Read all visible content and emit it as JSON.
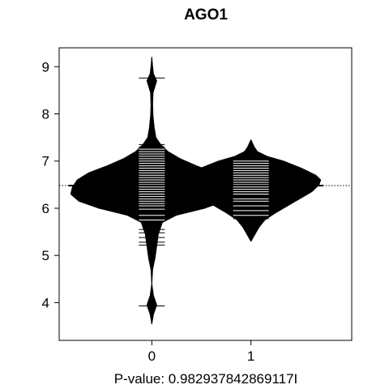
{
  "chart_data": {
    "type": "beanplot",
    "title": "AGO1",
    "xlabel": "P-value: 0.982937842869117I",
    "ylabel": "",
    "categories": [
      "0",
      "1"
    ],
    "y_ticks": [
      "4",
      "5",
      "6",
      "7",
      "8",
      "9"
    ],
    "ylim": [
      3.2,
      9.4
    ],
    "overall_mean": 6.48,
    "grid": false,
    "legend": "none",
    "colors": {
      "bean": "#000000",
      "line": "#ffffff",
      "background": "#ffffff"
    },
    "beans": [
      {
        "category": "0",
        "mean": 6.48,
        "density": [
          [
            3.55,
            0.0
          ],
          [
            3.75,
            0.02
          ],
          [
            3.95,
            0.06
          ],
          [
            4.15,
            0.02
          ],
          [
            4.4,
            0.0
          ],
          [
            4.7,
            0.01
          ],
          [
            4.95,
            0.04
          ],
          [
            5.2,
            0.06
          ],
          [
            5.45,
            0.08
          ],
          [
            5.7,
            0.13
          ],
          [
            5.85,
            0.3
          ],
          [
            6.0,
            0.65
          ],
          [
            6.15,
            0.9
          ],
          [
            6.3,
            1.0
          ],
          [
            6.45,
            0.98
          ],
          [
            6.6,
            0.92
          ],
          [
            6.75,
            0.78
          ],
          [
            6.9,
            0.55
          ],
          [
            7.05,
            0.35
          ],
          [
            7.2,
            0.2
          ],
          [
            7.35,
            0.11
          ],
          [
            7.5,
            0.05
          ],
          [
            7.7,
            0.03
          ],
          [
            7.95,
            0.015
          ],
          [
            8.2,
            0.01
          ],
          [
            8.45,
            0.015
          ],
          [
            8.7,
            0.06
          ],
          [
            8.85,
            0.02
          ],
          [
            9.0,
            0.01
          ],
          [
            9.2,
            0.0
          ]
        ],
        "lines": [
          3.93,
          5.22,
          5.28,
          5.38,
          5.48,
          5.55,
          5.75,
          5.85,
          5.98,
          6.05,
          6.1,
          6.15,
          6.2,
          6.25,
          6.3,
          6.35,
          6.4,
          6.45,
          6.5,
          6.55,
          6.6,
          6.65,
          6.7,
          6.75,
          6.8,
          6.85,
          6.9,
          6.95,
          7.0,
          7.05,
          7.1,
          7.15,
          7.2,
          7.25,
          7.3,
          7.35,
          8.76
        ]
      },
      {
        "category": "1",
        "mean": 6.48,
        "density": [
          [
            5.3,
            0.0
          ],
          [
            5.45,
            0.05
          ],
          [
            5.6,
            0.1
          ],
          [
            5.75,
            0.17
          ],
          [
            5.9,
            0.3
          ],
          [
            6.05,
            0.45
          ],
          [
            6.2,
            0.6
          ],
          [
            6.35,
            0.75
          ],
          [
            6.5,
            0.84
          ],
          [
            6.6,
            0.86
          ],
          [
            6.7,
            0.8
          ],
          [
            6.85,
            0.62
          ],
          [
            7.0,
            0.4
          ],
          [
            7.1,
            0.2
          ],
          [
            7.2,
            0.08
          ],
          [
            7.3,
            0.04
          ],
          [
            7.45,
            0.0
          ]
        ],
        "lines": [
          5.78,
          5.85,
          5.95,
          6.05,
          6.15,
          6.2,
          6.3,
          6.35,
          6.4,
          6.45,
          6.5,
          6.55,
          6.6,
          6.65,
          6.7,
          6.75,
          6.8,
          6.85,
          6.9,
          6.95,
          7.0
        ]
      }
    ]
  }
}
